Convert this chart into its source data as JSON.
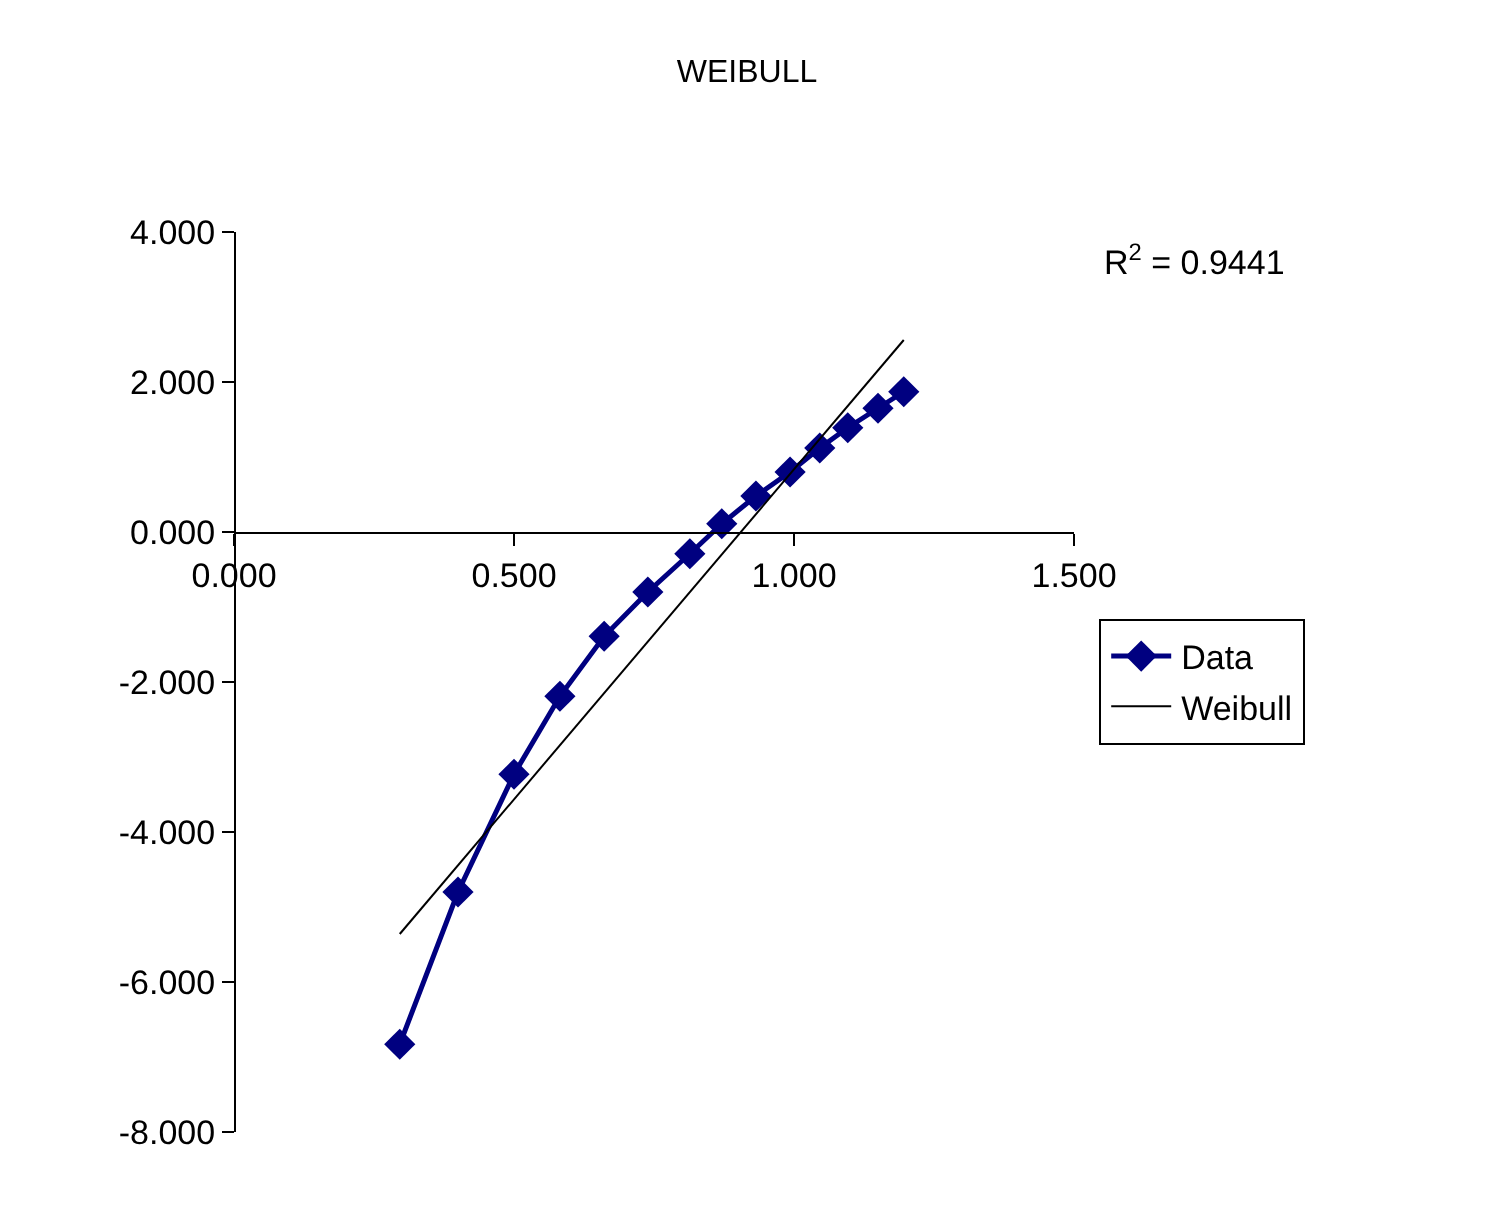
{
  "chart_data": {
    "type": "line",
    "title": "WEIBULL",
    "series": [
      {
        "name": "Data",
        "color": "#000080",
        "marker": "diamond",
        "x": [
          0.296,
          0.4,
          0.5,
          0.582,
          0.661,
          0.739,
          0.814,
          0.871,
          0.932,
          0.993,
          1.046,
          1.096,
          1.15,
          1.196
        ],
        "values": [
          -6.83,
          -4.8,
          -3.23,
          -2.19,
          -1.39,
          -0.8,
          -0.29,
          0.11,
          0.48,
          0.8,
          1.12,
          1.39,
          1.65,
          1.87
        ]
      },
      {
        "name": "Weibull",
        "color": "#000000",
        "marker": "none",
        "x": [
          0.296,
          1.196
        ],
        "values": [
          -5.36,
          2.56
        ]
      }
    ],
    "xlim": [
      0,
      1.5
    ],
    "xticks": [
      {
        "value": 0,
        "label": "0.000"
      },
      {
        "value": 0.5,
        "label": "0.500"
      },
      {
        "value": 1,
        "label": "1.000"
      },
      {
        "value": 1.5,
        "label": "1.500"
      }
    ],
    "ylim": [
      -8,
      4
    ],
    "yticks": [
      {
        "value": -8,
        "label": "-8.000"
      },
      {
        "value": -6,
        "label": "-6.000"
      },
      {
        "value": -4,
        "label": "-4.000"
      },
      {
        "value": -2,
        "label": "-2.000"
      },
      {
        "value": 0,
        "label": "0.000"
      },
      {
        "value": 2,
        "label": "2.000"
      },
      {
        "value": 4,
        "label": "4.000"
      }
    ],
    "annotations": [
      "R$^{2}$ = 0.9441"
    ],
    "grid": false,
    "legend": "right"
  }
}
